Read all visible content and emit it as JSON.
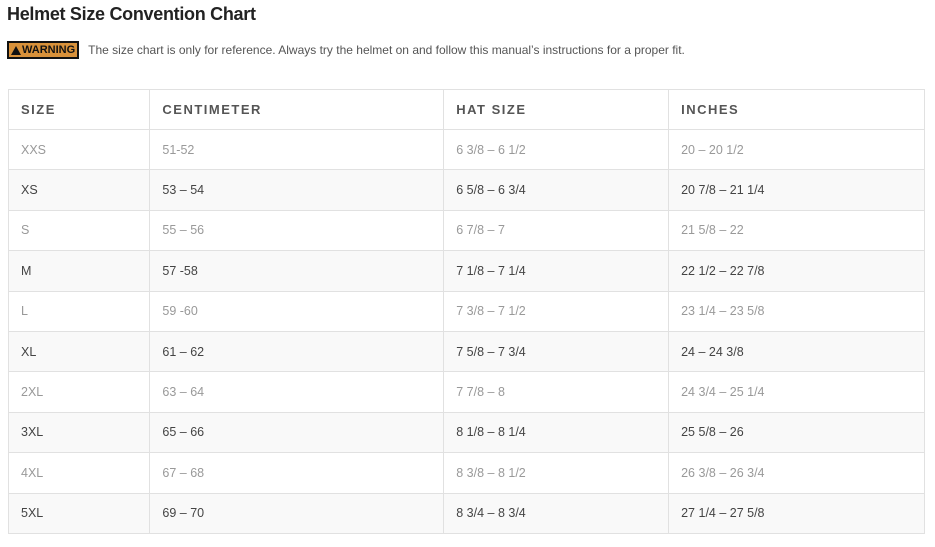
{
  "title": "Helmet Size Convention Chart",
  "warning": {
    "badge": "WARNING",
    "icon": "warning-triangle-icon",
    "text": "The size chart is only for reference. Always try the helmet on and follow this manual’s instructions for a proper fit.",
    "badge_color": "#d8913a"
  },
  "table": {
    "headers": [
      "SIZE",
      "CENTIMETER",
      "HAT SIZE",
      "INCHES"
    ],
    "rows": [
      [
        "XXS",
        "51-52",
        "6 3/8 – 6 1/2",
        "20 – 20 1/2"
      ],
      [
        "XS",
        "53 – 54",
        "6 5/8 – 6 3/4",
        "20 7/8 – 21 1/4"
      ],
      [
        "S",
        "55 – 56",
        "6 7/8 – 7",
        "21 5/8 – 22"
      ],
      [
        "M",
        "57 -58",
        "7 1/8 – 7 1/4",
        "22 1/2 – 22 7/8"
      ],
      [
        "L",
        "59 -60",
        "7 3/8 – 7 1/2",
        "23 1/4 – 23 5/8"
      ],
      [
        "XL",
        "61 – 62",
        "7 5/8 – 7 3/4",
        "24 – 24 3/8"
      ],
      [
        "2XL",
        "63 – 64",
        "7 7/8 – 8",
        "24 3/4 – 25 1/4"
      ],
      [
        "3XL",
        "65 – 66",
        "8 1/8 – 8 1/4",
        "25 5/8 – 26"
      ],
      [
        "4XL",
        "67 – 68",
        "8 3/8 – 8 1/2",
        "26 3/8 – 26 3/4"
      ],
      [
        "5XL",
        "69 – 70",
        "8 3/4 – 8 3/4",
        "27 1/4 – 27 5/8"
      ]
    ]
  }
}
